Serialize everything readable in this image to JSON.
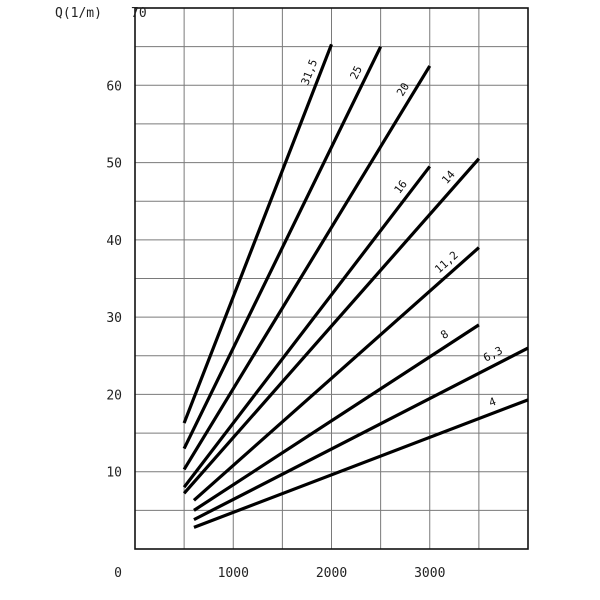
{
  "chart_data": {
    "type": "line",
    "title": "",
    "xlabel": "",
    "ylabel": "Q(1/m)",
    "xlim": [
      0,
      4000
    ],
    "ylim": [
      0,
      70
    ],
    "x_tick_labels": [
      "0",
      "1000",
      "2000",
      "3000"
    ],
    "y_tick_labels": [
      "10",
      "20",
      "30",
      "40",
      "50",
      "60",
      "70"
    ],
    "grid": true,
    "series": [
      {
        "name": "31,5",
        "x": [
          500,
          2000
        ],
        "y": [
          16.3,
          65.3
        ]
      },
      {
        "name": "25",
        "x": [
          500,
          2500
        ],
        "y": [
          13.0,
          65.0
        ]
      },
      {
        "name": "20",
        "x": [
          500,
          3000
        ],
        "y": [
          10.3,
          62.5
        ]
      },
      {
        "name": "16",
        "x": [
          500,
          3000
        ],
        "y": [
          8.0,
          49.5
        ]
      },
      {
        "name": "14",
        "x": [
          500,
          3500
        ],
        "y": [
          7.2,
          50.5
        ]
      },
      {
        "name": "11,2",
        "x": [
          600,
          3500
        ],
        "y": [
          6.3,
          39.0
        ]
      },
      {
        "name": "8",
        "x": [
          600,
          3500
        ],
        "y": [
          5.0,
          29.0
        ]
      },
      {
        "name": "6,3",
        "x": [
          600,
          4000
        ],
        "y": [
          3.8,
          26.0
        ]
      },
      {
        "name": "4",
        "x": [
          600,
          4000
        ],
        "y": [
          2.8,
          19.3
        ]
      }
    ]
  }
}
